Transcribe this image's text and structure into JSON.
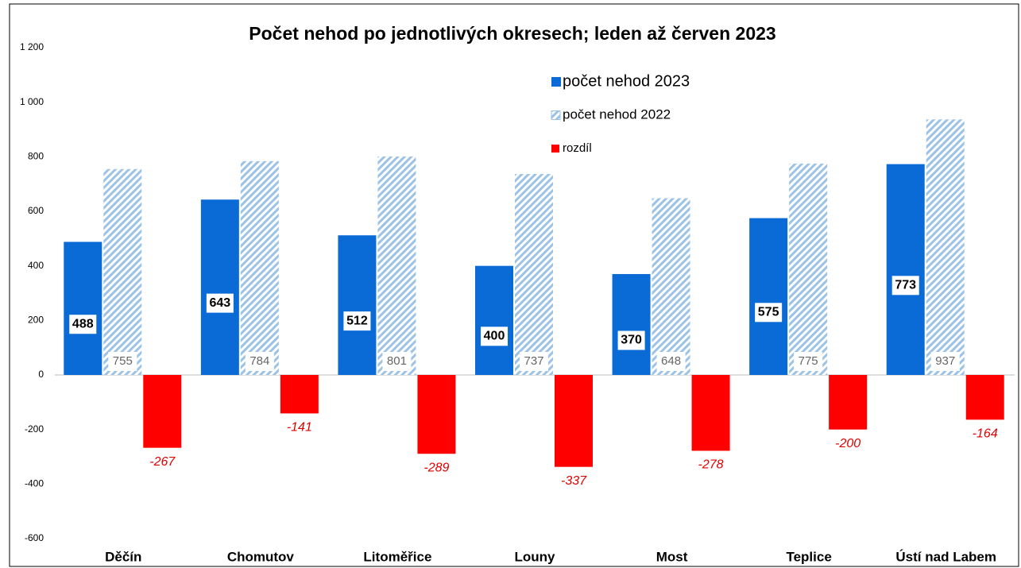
{
  "chart_data": {
    "type": "bar",
    "title": "Počet nehod po jednotlivých okresech; leden až červen 2023",
    "categories": [
      "Děčín",
      "Chomutov",
      "Litoměřice",
      "Louny",
      "Most",
      "Teplice",
      "Ústí nad Labem"
    ],
    "series": [
      {
        "name": "počet nehod 2023",
        "color": "#0a6ad6",
        "values": [
          488,
          643,
          512,
          400,
          370,
          575,
          773
        ]
      },
      {
        "name": "počet nehod 2022",
        "color": "#9cc3e6",
        "values": [
          755,
          784,
          801,
          737,
          648,
          775,
          937
        ]
      },
      {
        "name": "rozdíl",
        "color": "#ff0000",
        "values": [
          -267,
          -141,
          -289,
          -337,
          -278,
          -200,
          -164
        ]
      }
    ],
    "ylim": [
      -600,
      1200
    ],
    "yticks": [
      -600,
      -400,
      -200,
      0,
      200,
      400,
      600,
      800,
      {
        "value": 1000,
        "label": "1 000"
      },
      {
        "value": 1200,
        "label": "1 200"
      }
    ],
    "grid": false
  }
}
